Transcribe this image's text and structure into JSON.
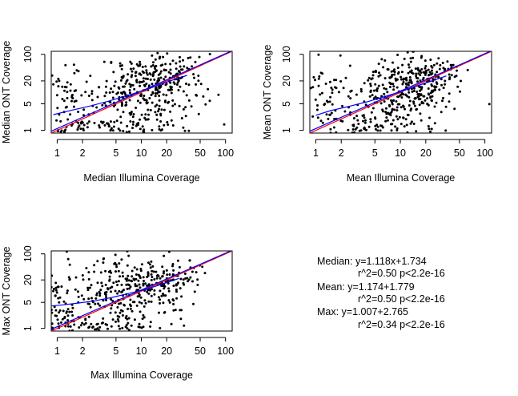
{
  "chart_data": [
    {
      "type": "scatter",
      "title": "",
      "xlabel": "Median Illumina Coverage",
      "ylabel": "Median ONT Coverage",
      "xscale": "log",
      "yscale": "log",
      "xlim": [
        0.85,
        120
      ],
      "ylim": [
        0.85,
        120
      ],
      "xticks": [
        1,
        2,
        5,
        10,
        20,
        50,
        100
      ],
      "yticks": [
        1,
        5,
        20,
        100
      ],
      "grid": false,
      "seed": 11,
      "series": [
        {
          "type": "scatter",
          "color": "#000000",
          "clusters": [
            {
              "cx": 11,
              "cy": 18,
              "sx": 0.28,
              "sy": 0.34,
              "n": 150
            },
            {
              "cx": 20,
              "cy": 30,
              "sx": 0.22,
              "sy": 0.3,
              "n": 90
            },
            {
              "cx": 7,
              "cy": 2.5,
              "sx": 0.3,
              "sy": 0.35,
              "n": 70
            },
            {
              "cx": 3.5,
              "cy": 1.2,
              "sx": 0.35,
              "sy": 0.12,
              "n": 45
            },
            {
              "cx": 1.2,
              "cy": 8,
              "sx": 0.12,
              "sy": 0.45,
              "n": 40
            },
            {
              "cx": 6,
              "cy": 8,
              "sx": 0.55,
              "sy": 0.6,
              "n": 60
            },
            {
              "cx": 12,
              "cy": 5,
              "sx": 0.3,
              "sy": 0.35,
              "n": 40
            }
          ]
        },
        {
          "type": "line",
          "color": "#ff0000",
          "x": [
            0.85,
            120
          ],
          "y": [
            0.85,
            120
          ]
        },
        {
          "type": "line",
          "color": "#0000ff",
          "x": [
            0.85,
            120
          ],
          "y": [
            0.95,
            125
          ]
        },
        {
          "type": "line",
          "color": "#0000ff",
          "x": [
            0.9,
            1.5,
            2.5,
            4,
            6,
            9,
            14,
            22,
            35
          ],
          "y": [
            2.6,
            3.4,
            4.4,
            5.8,
            7.6,
            10,
            14,
            20,
            28
          ]
        }
      ]
    },
    {
      "type": "scatter",
      "title": "",
      "xlabel": "Mean Illumina Coverage",
      "ylabel": "Mean ONT Coverage",
      "xscale": "log",
      "yscale": "log",
      "xlim": [
        0.85,
        120
      ],
      "ylim": [
        0.85,
        120
      ],
      "xticks": [
        1,
        2,
        5,
        10,
        20,
        50,
        100
      ],
      "yticks": [
        1,
        5,
        20,
        100
      ],
      "grid": false,
      "seed": 23,
      "series": [
        {
          "type": "scatter",
          "color": "#000000",
          "clusters": [
            {
              "cx": 10,
              "cy": 16,
              "sx": 0.28,
              "sy": 0.34,
              "n": 150
            },
            {
              "cx": 20,
              "cy": 28,
              "sx": 0.22,
              "sy": 0.3,
              "n": 90
            },
            {
              "cx": 7,
              "cy": 2.5,
              "sx": 0.3,
              "sy": 0.35,
              "n": 70
            },
            {
              "cx": 3.5,
              "cy": 1.2,
              "sx": 0.35,
              "sy": 0.12,
              "n": 45
            },
            {
              "cx": 1.2,
              "cy": 8,
              "sx": 0.12,
              "sy": 0.45,
              "n": 40
            },
            {
              "cx": 6,
              "cy": 8,
              "sx": 0.55,
              "sy": 0.6,
              "n": 60
            },
            {
              "cx": 12,
              "cy": 5,
              "sx": 0.3,
              "sy": 0.35,
              "n": 40
            }
          ]
        },
        {
          "type": "line",
          "color": "#ff0000",
          "x": [
            0.85,
            120
          ],
          "y": [
            0.85,
            120
          ]
        },
        {
          "type": "line",
          "color": "#0000ff",
          "x": [
            0.85,
            120
          ],
          "y": [
            0.95,
            125
          ]
        },
        {
          "type": "line",
          "color": "#0000ff",
          "x": [
            1,
            1.5,
            2.5,
            4,
            6,
            9,
            14,
            22,
            35
          ],
          "y": [
            2.5,
            3.3,
            4.3,
            5.6,
            7.3,
            9.6,
            13.5,
            19,
            27
          ]
        }
      ]
    },
    {
      "type": "scatter",
      "title": "",
      "xlabel": "Max Illumina Coverage",
      "ylabel": "Max ONT Coverage",
      "xscale": "log",
      "yscale": "log",
      "xlim": [
        0.85,
        120
      ],
      "ylim": [
        0.85,
        120
      ],
      "xticks": [
        1,
        2,
        5,
        10,
        20,
        50,
        100
      ],
      "yticks": [
        1,
        5,
        20,
        100
      ],
      "grid": false,
      "seed": 37,
      "series": [
        {
          "type": "scatter",
          "color": "#000000",
          "clusters": [
            {
              "cx": 8,
              "cy": 14,
              "sx": 0.32,
              "sy": 0.38,
              "n": 170
            },
            {
              "cx": 18,
              "cy": 26,
              "sx": 0.22,
              "sy": 0.3,
              "n": 80
            },
            {
              "cx": 2.5,
              "cy": 1.2,
              "sx": 0.4,
              "sy": 0.12,
              "n": 70
            },
            {
              "cx": 5,
              "cy": 2.5,
              "sx": 0.35,
              "sy": 0.35,
              "n": 60
            },
            {
              "cx": 1.0,
              "cy": 8,
              "sx": 0.1,
              "sy": 0.5,
              "n": 40
            },
            {
              "cx": 4,
              "cy": 7,
              "sx": 0.5,
              "sy": 0.6,
              "n": 70
            }
          ]
        },
        {
          "type": "line",
          "color": "#ff0000",
          "x": [
            0.85,
            120
          ],
          "y": [
            0.85,
            120
          ]
        },
        {
          "type": "line",
          "color": "#0000ff",
          "x": [
            0.85,
            120
          ],
          "y": [
            0.95,
            125
          ]
        },
        {
          "type": "line",
          "color": "#0000ff",
          "x": [
            0.85,
            1.2,
            1.8,
            2.8,
            4.5,
            7,
            11,
            17,
            28
          ],
          "y": [
            4.0,
            4.3,
            4.8,
            5.5,
            6.8,
            8.6,
            11,
            15,
            22
          ]
        }
      ]
    }
  ],
  "stats": {
    "median_line1": "Median: y=1.118x+1.734",
    "median_line2": "r^2=0.50 p<2.2e-16",
    "mean_line1": "Mean: y=1.174+1.779",
    "mean_line2": "r^2=0.50 p<2.2e-16",
    "max_line1": "Max: y=1.007+2.765",
    "max_line2": "r^2=0.34 p<2.2e-16"
  }
}
